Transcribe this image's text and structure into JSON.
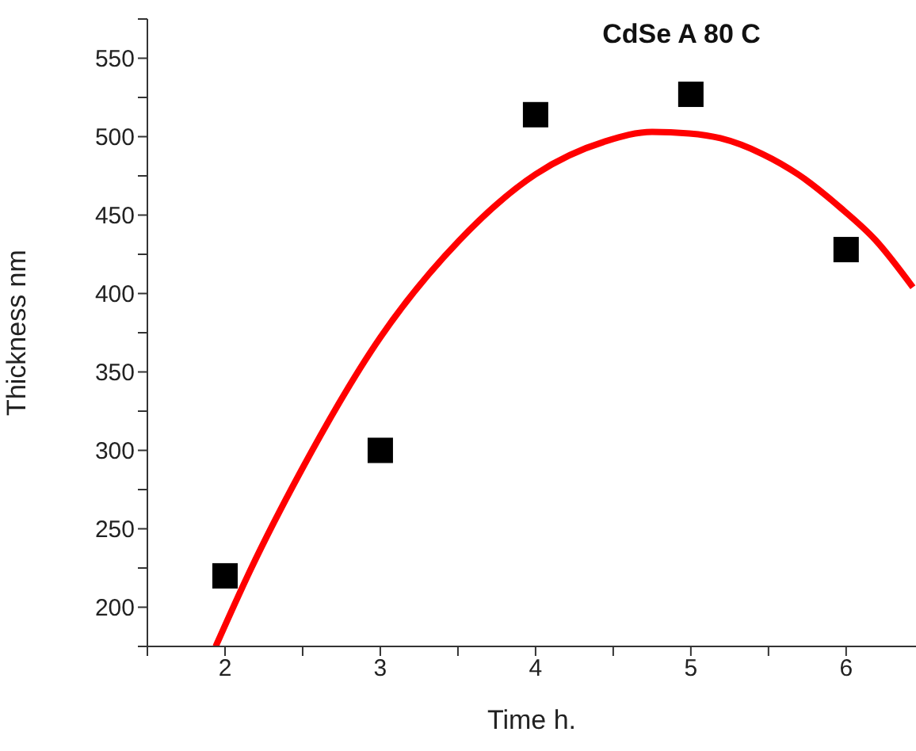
{
  "chart_data": {
    "type": "scatter",
    "title": "CdSe A 80 C",
    "xlabel": "Time h.",
    "ylabel": "Thickness nm",
    "xlim": [
      1.5,
      6.45
    ],
    "ylim": [
      175,
      575
    ],
    "xticks": [
      {
        "value": 1.5,
        "label": null
      },
      2,
      {
        "value": 2.5,
        "label": null
      },
      3,
      {
        "value": 3.5,
        "label": null
      },
      4,
      {
        "value": 4.5,
        "label": null
      },
      5,
      {
        "value": 5.5,
        "label": null
      },
      6
    ],
    "yticks": [
      {
        "value": 175,
        "label": null
      },
      200,
      {
        "value": 225,
        "label": null
      },
      250,
      {
        "value": 275,
        "label": null
      },
      300,
      {
        "value": 325,
        "label": null
      },
      350,
      {
        "value": 375,
        "label": null
      },
      400,
      {
        "value": 425,
        "label": null
      },
      450,
      {
        "value": 475,
        "label": null
      },
      500,
      {
        "value": 525,
        "label": null
      },
      550,
      {
        "value": 575,
        "label": null
      }
    ],
    "grid": false,
    "legend": false,
    "series": [
      {
        "marker": "square",
        "color": "#000000",
        "x": [
          2,
          3,
          4,
          5,
          6
        ],
        "values": [
          220,
          300,
          514,
          527,
          428
        ]
      },
      {
        "type": "line",
        "line_style": "solid",
        "marker": "none",
        "color": "#ff0000",
        "x": [
          1.94,
          2.16,
          2.49,
          3.0,
          3.51,
          4.0,
          4.45,
          4.75,
          4.99,
          5.19,
          5.46,
          5.69,
          5.96,
          6.19,
          6.43
        ],
        "values": [
          175,
          223,
          287,
          372,
          434,
          476,
          497,
          503,
          502,
          499,
          489,
          476,
          455,
          434,
          404
        ]
      }
    ]
  }
}
